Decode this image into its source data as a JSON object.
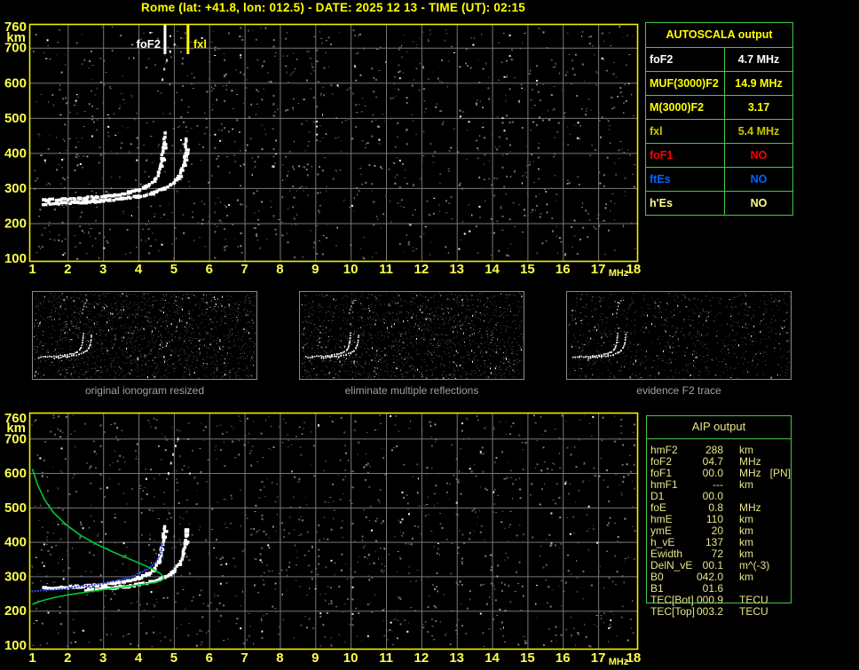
{
  "title": "Rome (lat: +41.8, lon: 012.5) - DATE: 2025 12 13 - TIME (UT): 02:15",
  "axes": {
    "x_ticks": [
      "1",
      "2",
      "3",
      "4",
      "5",
      "6",
      "7",
      "8",
      "9",
      "10",
      "11",
      "12",
      "13",
      "14",
      "15",
      "16",
      "17",
      "18"
    ],
    "x_unit": "MHz",
    "y_ticks": [
      "760",
      "700",
      "600",
      "500",
      "400",
      "300",
      "200",
      "100"
    ],
    "y_unit": "km"
  },
  "autoscala_table": {
    "header": "AUTOSCALA output",
    "rows": [
      {
        "label": "foF2",
        "value": "4.7 MHz",
        "color": "#ffffff"
      },
      {
        "label": "MUF(3000)F2",
        "value": "14.9 MHz",
        "color": "#ffff00"
      },
      {
        "label": "M(3000)F2",
        "value": "3.17",
        "color": "#ffff00"
      },
      {
        "label": "fxl",
        "value": "5.4 MHz",
        "color": "#c8c800"
      },
      {
        "label": "foF1",
        "value": "NO",
        "color": "#ff0000"
      },
      {
        "label": "ftEs",
        "value": "NO",
        "color": "#0066ff"
      },
      {
        "label": "h'Es",
        "value": "NO",
        "color": "#ffff8c"
      }
    ]
  },
  "aip_table": {
    "header": "AIP output",
    "rows": [
      {
        "label": "hmF2",
        "value": "288",
        "unit": "km",
        "extra": ""
      },
      {
        "label": "foF2",
        "value": "04.7",
        "unit": "MHz",
        "extra": ""
      },
      {
        "label": "foF1",
        "value": "00.0",
        "unit": "MHz",
        "extra": "[PN]"
      },
      {
        "label": "hmF1",
        "value": "---",
        "unit": "km",
        "extra": ""
      },
      {
        "label": "D1",
        "value": "00.0",
        "unit": "",
        "extra": ""
      },
      {
        "label": "foE",
        "value": "0.8",
        "unit": "MHz",
        "extra": ""
      },
      {
        "label": "hmE",
        "value": "110",
        "unit": "km",
        "extra": ""
      },
      {
        "label": "ymE",
        "value": "20",
        "unit": "km",
        "extra": ""
      },
      {
        "label": "h_vE",
        "value": "137",
        "unit": "km",
        "extra": ""
      },
      {
        "label": "Ewidth",
        "value": "72",
        "unit": "km",
        "extra": ""
      },
      {
        "label": "DelN_vE",
        "value": "00.1",
        "unit": "m^(-3)",
        "extra": ""
      },
      {
        "label": "B0",
        "value": "042.0",
        "unit": "km",
        "extra": ""
      },
      {
        "label": "B1",
        "value": "01.6",
        "unit": "",
        "extra": ""
      },
      {
        "label": "TEC[Bot]",
        "value": "000.9",
        "unit": "TECU",
        "extra": ""
      },
      {
        "label": "TEC[Top]",
        "value": "003.2",
        "unit": "TECU",
        "extra": ""
      }
    ]
  },
  "panels": {
    "captions": [
      "original ionogram resized",
      "eliminate multiple reflections",
      "evidence F2 trace"
    ]
  },
  "chart_data": [
    {
      "id": "scaled_ionogram",
      "type": "scatter",
      "title": "ionogram with AUTOSCALA scaling markers",
      "xlabel": "MHz",
      "ylabel": "km",
      "xlim": [
        1,
        18
      ],
      "ylim": [
        100,
        760
      ],
      "grid": true,
      "markers": [
        {
          "label": "foF2",
          "x": 4.75,
          "color": "#ffffff"
        },
        {
          "label": "fxl",
          "x": 5.4,
          "color": "#ffff00"
        }
      ],
      "series": [
        {
          "name": "F2 trace O-mode",
          "style": "blocky",
          "color": "#ffffff",
          "points": [
            [
              1.3,
              265
            ],
            [
              1.8,
              267
            ],
            [
              2.3,
              270
            ],
            [
              2.8,
              274
            ],
            [
              3.3,
              280
            ],
            [
              3.7,
              287
            ],
            [
              4.0,
              295
            ],
            [
              4.25,
              306
            ],
            [
              4.45,
              322
            ],
            [
              4.58,
              345
            ],
            [
              4.66,
              378
            ],
            [
              4.71,
              415
            ],
            [
              4.74,
              455
            ]
          ]
        },
        {
          "name": "F2 trace X-mode",
          "style": "blocky",
          "color": "#ffffff",
          "points": [
            [
              2.5,
              260
            ],
            [
              3.0,
              264
            ],
            [
              3.5,
              269
            ],
            [
              4.0,
              276
            ],
            [
              4.4,
              285
            ],
            [
              4.75,
              298
            ],
            [
              5.0,
              315
            ],
            [
              5.15,
              335
            ],
            [
              5.27,
              365
            ],
            [
              5.33,
              400
            ],
            [
              5.36,
              440
            ]
          ]
        },
        {
          "name": "low band",
          "style": "blocky",
          "color": "#ffffff",
          "points": [
            [
              1.3,
              255
            ],
            [
              1.9,
              257
            ],
            [
              2.5,
              260
            ],
            [
              3.0,
              263
            ]
          ]
        },
        {
          "name": "spread echoes",
          "style": "dots",
          "color": "#d8d8d8",
          "points": [
            [
              4.68,
              610
            ],
            [
              4.73,
              640
            ],
            [
              4.8,
              665
            ],
            [
              4.9,
              690
            ],
            [
              5.02,
              710
            ]
          ]
        }
      ]
    },
    {
      "id": "thumbnails",
      "type": "scatter",
      "note": "three resized copies of the ionogram trace",
      "captions": [
        "original ionogram resized",
        "eliminate multiple reflections",
        "evidence F2 trace"
      ]
    },
    {
      "id": "profile_ionogram",
      "type": "scatter",
      "title": "ionogram with restored trace and electron density profile",
      "xlabel": "MHz",
      "ylabel": "km",
      "xlim": [
        1,
        18
      ],
      "ylim": [
        100,
        760
      ],
      "grid": true,
      "series": [
        {
          "name": "F2 trace O-mode",
          "style": "blocky",
          "color": "#ffffff",
          "points": [
            [
              1.3,
              265
            ],
            [
              1.8,
              267
            ],
            [
              2.3,
              270
            ],
            [
              2.8,
              274
            ],
            [
              3.3,
              280
            ],
            [
              3.7,
              287
            ],
            [
              4.0,
              295
            ],
            [
              4.25,
              306
            ],
            [
              4.45,
              322
            ],
            [
              4.58,
              345
            ],
            [
              4.66,
              378
            ],
            [
              4.71,
              415
            ],
            [
              4.74,
              445
            ]
          ]
        },
        {
          "name": "F2 trace X-mode",
          "style": "blocky",
          "color": "#ffffff",
          "points": [
            [
              2.5,
              260
            ],
            [
              3.0,
              264
            ],
            [
              3.5,
              269
            ],
            [
              4.0,
              276
            ],
            [
              4.4,
              285
            ],
            [
              4.75,
              298
            ],
            [
              5.0,
              315
            ],
            [
              5.15,
              335
            ],
            [
              5.27,
              365
            ],
            [
              5.33,
              400
            ],
            [
              5.36,
              435
            ]
          ]
        },
        {
          "name": "spread echoes",
          "style": "dots",
          "color": "#d8d8d8",
          "points": [
            [
              4.85,
              600
            ],
            [
              4.92,
              630
            ],
            [
              4.98,
              655
            ],
            [
              5.05,
              680
            ],
            [
              5.12,
              700
            ]
          ]
        },
        {
          "name": "restored trace points",
          "style": "squares",
          "color": "#3344ee",
          "points": [
            [
              1.0,
              256
            ],
            [
              1.4,
              259
            ],
            [
              1.8,
              263
            ],
            [
              2.2,
              268
            ],
            [
              2.6,
              273
            ],
            [
              3.0,
              280
            ],
            [
              3.4,
              288
            ],
            [
              3.75,
              298
            ],
            [
              4.05,
              310
            ],
            [
              4.3,
              324
            ],
            [
              4.5,
              342
            ],
            [
              4.62,
              365
            ],
            [
              4.68,
              392
            ]
          ]
        },
        {
          "name": "electron density profile",
          "style": "line",
          "color": "#00c832",
          "points": [
            [
              1.0,
              612
            ],
            [
              1.15,
              565
            ],
            [
              1.35,
              522
            ],
            [
              1.6,
              485
            ],
            [
              1.95,
              450
            ],
            [
              2.35,
              420
            ],
            [
              2.8,
              394
            ],
            [
              3.25,
              372
            ],
            [
              3.7,
              352
            ],
            [
              4.1,
              335
            ],
            [
              4.4,
              321
            ],
            [
              4.6,
              309
            ],
            [
              4.7,
              300
            ],
            [
              4.72,
              294
            ],
            [
              4.65,
              288
            ],
            [
              4.45,
              282
            ],
            [
              4.1,
              276
            ],
            [
              3.6,
              269
            ],
            [
              3.05,
              262
            ],
            [
              2.5,
              254
            ],
            [
              2.0,
              246
            ],
            [
              1.6,
              238
            ],
            [
              1.3,
              230
            ],
            [
              1.1,
              223
            ],
            [
              1.0,
              218
            ]
          ]
        }
      ]
    }
  ]
}
